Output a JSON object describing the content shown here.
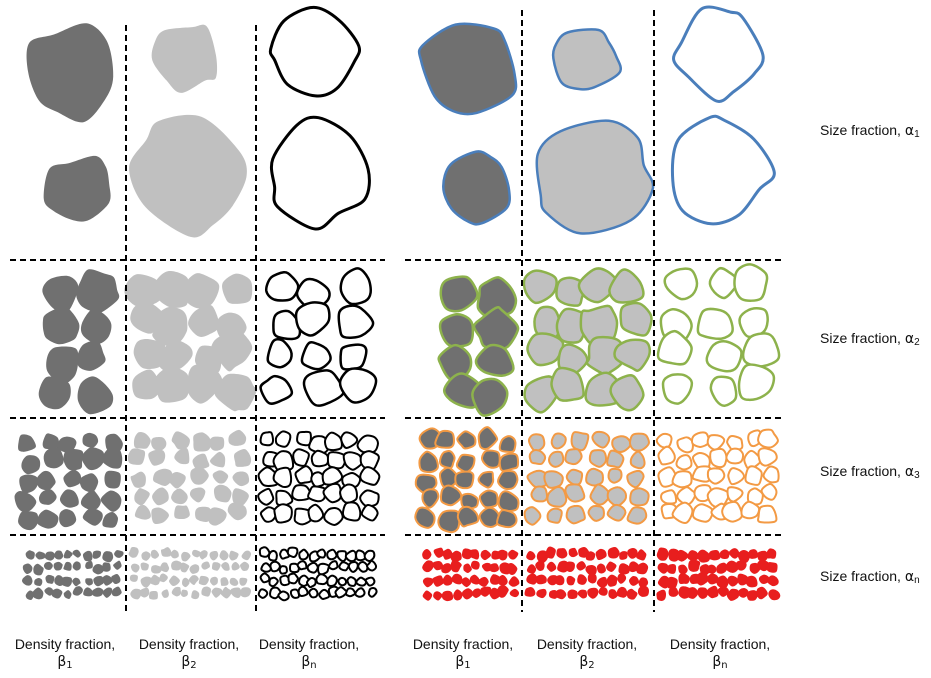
{
  "size_fractions": [
    {
      "prefix": "Size fraction, ",
      "symbol": "α",
      "sub": "1"
    },
    {
      "prefix": "Size fraction, ",
      "symbol": "α",
      "sub": "2"
    },
    {
      "prefix": "Size fraction, ",
      "symbol": "α",
      "sub": "3"
    },
    {
      "prefix": "Size fraction, ",
      "symbol": "α",
      "sub": "n"
    }
  ],
  "density_fractions": [
    {
      "text": "Density fraction,",
      "symbol": "β",
      "sub": "1"
    },
    {
      "text": "Density fraction,",
      "symbol": "β",
      "sub": "2"
    },
    {
      "text": "Density fraction,",
      "symbol": "β",
      "sub": "n"
    },
    {
      "text": "Density fraction,",
      "symbol": "β",
      "sub": "1"
    },
    {
      "text": "Density fraction,",
      "symbol": "β",
      "sub": "2"
    },
    {
      "text": "Density fraction,",
      "symbol": "β",
      "sub": "n"
    }
  ],
  "colors": {
    "dark_fill": "#707070",
    "light_fill": "#c0c0c0",
    "black_outline": "#000000",
    "alpha1_outline": "#4a7ebb",
    "alpha2_outline": "#8db24c",
    "alpha3_outline": "#f39a44",
    "alphan_outline": "#e81e1e",
    "divider": "#000000"
  }
}
